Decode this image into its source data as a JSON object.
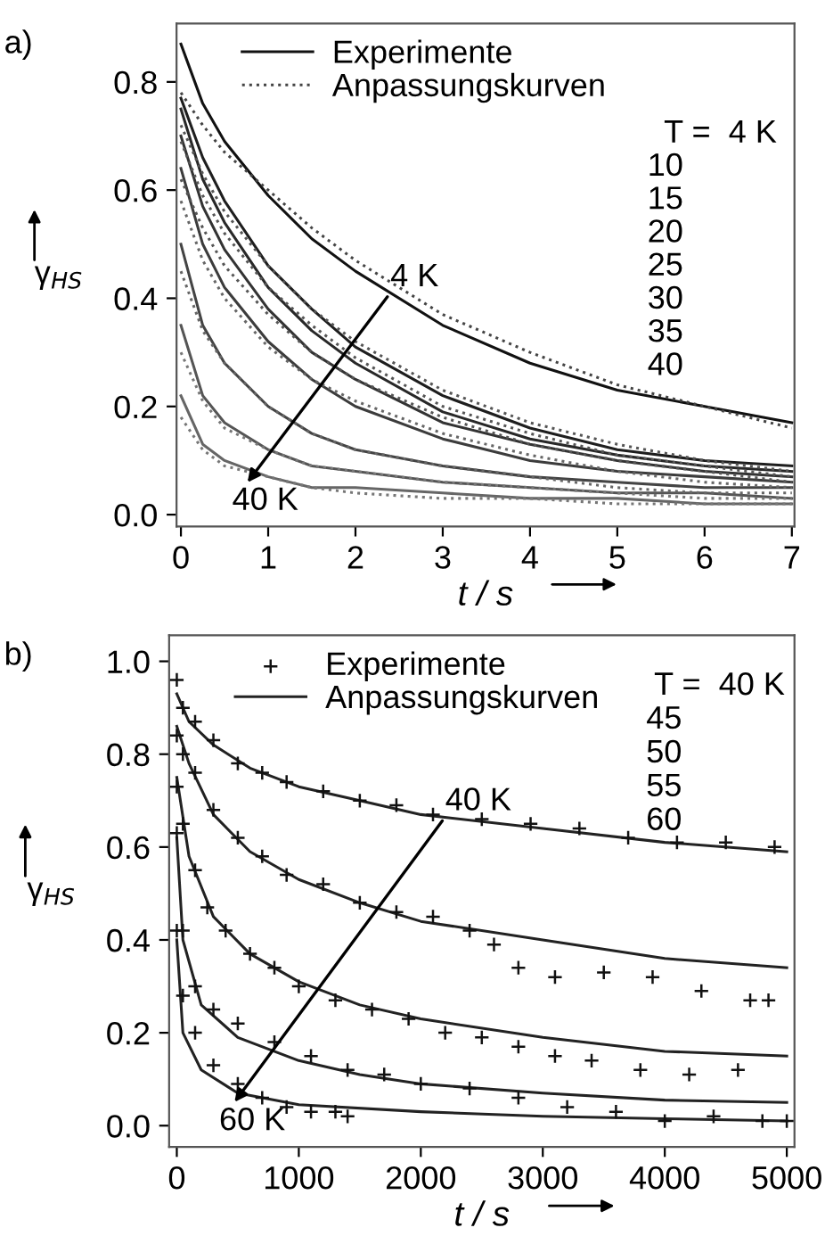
{
  "chart_data": [
    {
      "type": "line",
      "xlabel": "t / s",
      "ylabel": "γ$_{HS}$",
      "xlim": [
        -0.05,
        7.03
      ],
      "ylim": [
        -0.022,
        0.908
      ],
      "xticks": [
        0,
        1,
        2,
        3,
        4,
        5,
        6,
        7
      ],
      "yticks": [
        {
          "value": 0,
          "label": "0.0"
        },
        {
          "value": 0.2,
          "label": "0.2"
        },
        {
          "value": 0.4,
          "label": "0.4"
        },
        {
          "value": 0.6,
          "label": "0.6"
        },
        {
          "value": 0.8,
          "label": "0.8"
        }
      ],
      "grid": false,
      "legend": "top",
      "x": [
        0,
        0.25,
        0.5,
        1,
        1.5,
        2,
        3,
        4,
        5,
        6,
        7
      ],
      "annotations": [
        "a)",
        "T =  4 K",
        "10",
        "15",
        "20",
        "25",
        "30",
        "35",
        "40",
        {
          "text": "4 K",
          "x": 2.4,
          "y": 0.41
        },
        "40 K"
      ],
      "series": [
        {
          "name": "Experimente",
          "color": "#111111",
          "line_style": "solid",
          "values": [
            0.87,
            0.76,
            0.69,
            0.59,
            0.51,
            0.45,
            0.35,
            0.28,
            0.23,
            0.2,
            0.17
          ]
        },
        {
          "color": "#1e1e1e",
          "line_style": "solid",
          "values": [
            0.77,
            0.66,
            0.58,
            0.46,
            0.38,
            0.31,
            0.22,
            0.16,
            0.12,
            0.1,
            0.09
          ]
        },
        {
          "color": "#282828",
          "line_style": "solid",
          "values": [
            0.75,
            0.62,
            0.54,
            0.42,
            0.34,
            0.28,
            0.19,
            0.14,
            0.11,
            0.09,
            0.08
          ]
        },
        {
          "color": "#333333",
          "line_style": "solid",
          "values": [
            0.7,
            0.57,
            0.49,
            0.38,
            0.3,
            0.25,
            0.17,
            0.13,
            0.1,
            0.08,
            0.07
          ]
        },
        {
          "color": "#3c3c3c",
          "line_style": "solid",
          "values": [
            0.64,
            0.5,
            0.42,
            0.32,
            0.25,
            0.2,
            0.14,
            0.1,
            0.08,
            0.07,
            0.06
          ]
        },
        {
          "color": "#444444",
          "line_style": "solid",
          "values": [
            0.5,
            0.35,
            0.28,
            0.2,
            0.15,
            0.12,
            0.09,
            0.07,
            0.06,
            0.05,
            0.05
          ]
        },
        {
          "color": "#555555",
          "line_style": "solid",
          "values": [
            0.35,
            0.22,
            0.17,
            0.12,
            0.09,
            0.08,
            0.06,
            0.05,
            0.04,
            0.04,
            0.03
          ]
        },
        {
          "color": "#666666",
          "line_style": "solid",
          "values": [
            0.22,
            0.13,
            0.1,
            0.07,
            0.05,
            0.05,
            0.04,
            0.03,
            0.03,
            0.02,
            0.02
          ]
        },
        {
          "name": "Anpassungskurven",
          "color": "#444444",
          "line_style": "dotted",
          "values": [
            0.78,
            0.72,
            0.67,
            0.6,
            0.53,
            0.47,
            0.37,
            0.3,
            0.24,
            0.2,
            0.16
          ]
        },
        {
          "color": "#555555",
          "line_style": "dotted",
          "values": [
            0.72,
            0.63,
            0.56,
            0.46,
            0.38,
            0.32,
            0.23,
            0.17,
            0.13,
            0.1,
            0.08
          ]
        },
        {
          "color": "#555555",
          "line_style": "dotted",
          "values": [
            0.69,
            0.59,
            0.52,
            0.42,
            0.35,
            0.29,
            0.2,
            0.15,
            0.11,
            0.09,
            0.07
          ]
        },
        {
          "color": "#555555",
          "line_style": "dotted",
          "values": [
            0.62,
            0.53,
            0.46,
            0.37,
            0.3,
            0.25,
            0.18,
            0.13,
            0.1,
            0.08,
            0.06
          ]
        },
        {
          "color": "#666666",
          "line_style": "dotted",
          "values": [
            0.58,
            0.47,
            0.4,
            0.31,
            0.25,
            0.21,
            0.15,
            0.11,
            0.08,
            0.06,
            0.05
          ]
        },
        {
          "color": "#666666",
          "line_style": "dotted",
          "values": [
            0.45,
            0.34,
            0.28,
            0.2,
            0.15,
            0.12,
            0.09,
            0.07,
            0.05,
            0.04,
            0.04
          ]
        },
        {
          "color": "#777777",
          "line_style": "dotted",
          "values": [
            0.3,
            0.21,
            0.16,
            0.12,
            0.09,
            0.08,
            0.06,
            0.05,
            0.04,
            0.03,
            0.03
          ]
        },
        {
          "color": "#777777",
          "line_style": "dotted",
          "values": [
            0.18,
            0.12,
            0.09,
            0.07,
            0.05,
            0.04,
            0.03,
            0.03,
            0.02,
            0.02,
            0.02
          ]
        }
      ]
    },
    {
      "type": "scatter",
      "xlabel": "t / s",
      "ylabel": "γ$_{HS}$",
      "xlim": [
        -63,
        5063
      ],
      "ylim": [
        -0.046,
        1.056
      ],
      "xticks": [
        0,
        1000,
        2000,
        3000,
        4000,
        5000
      ],
      "yticks": [
        {
          "value": 0,
          "label": "0.0"
        },
        {
          "value": 0.2,
          "label": "0.2"
        },
        {
          "value": 0.4,
          "label": "0.4"
        },
        {
          "value": 0.6,
          "label": "0.6"
        },
        {
          "value": 0.8,
          "label": "0.8"
        },
        {
          "value": 1,
          "label": "1.0"
        }
      ],
      "grid": false,
      "legend": "top",
      "annotations": [
        "b)",
        "T =  40 K",
        "45",
        "50",
        "55",
        "60",
        {
          "text": "40 K",
          "x": 2200,
          "y": 0.665
        },
        "60 K"
      ],
      "series": [
        {
          "name": "Experimente",
          "type": "scatter",
          "marker": "cross",
          "color": "#111111",
          "x": [
            0,
            50,
            150,
            300,
            500,
            700,
            900,
            1200,
            1500,
            1800,
            2100,
            2500,
            2900,
            3300,
            3700,
            4100,
            4500,
            4900
          ],
          "values": [
            0.96,
            0.9,
            0.87,
            0.83,
            0.78,
            0.76,
            0.74,
            0.72,
            0.7,
            0.69,
            0.67,
            0.66,
            0.65,
            0.64,
            0.62,
            0.61,
            0.61,
            0.6
          ]
        },
        {
          "type": "scatter",
          "marker": "cross",
          "color": "#111111",
          "x": [
            0,
            50,
            150,
            300,
            500,
            700,
            900,
            1200,
            1500,
            1800,
            2100,
            2400,
            2600,
            2800,
            3100,
            3500,
            3900,
            4300,
            4700,
            4850
          ],
          "values": [
            0.84,
            0.8,
            0.76,
            0.68,
            0.62,
            0.58,
            0.54,
            0.52,
            0.48,
            0.46,
            0.45,
            0.42,
            0.39,
            0.34,
            0.32,
            0.33,
            0.32,
            0.29,
            0.27,
            0.27
          ]
        },
        {
          "type": "scatter",
          "marker": "cross",
          "color": "#111111",
          "x": [
            0,
            50,
            150,
            250,
            400,
            600,
            800,
            1000,
            1300,
            1600,
            1900,
            2200,
            2500,
            2800,
            3100,
            3400,
            3800,
            4200,
            4600
          ],
          "values": [
            0.73,
            0.65,
            0.55,
            0.47,
            0.42,
            0.37,
            0.34,
            0.3,
            0.27,
            0.25,
            0.23,
            0.2,
            0.19,
            0.17,
            0.15,
            0.14,
            0.12,
            0.11,
            0.12
          ]
        },
        {
          "type": "scatter",
          "marker": "cross",
          "color": "#111111",
          "x": [
            0,
            50,
            150,
            300,
            500,
            800,
            1100,
            1400,
            1700,
            2000,
            2400,
            2800,
            3200,
            3600,
            4000,
            4400,
            4800,
            5000
          ],
          "values": [
            0.63,
            0.42,
            0.3,
            0.25,
            0.22,
            0.18,
            0.15,
            0.12,
            0.11,
            0.09,
            0.08,
            0.06,
            0.04,
            0.03,
            0.01,
            0.02,
            0.01,
            0.01
          ]
        },
        {
          "type": "scatter",
          "marker": "cross",
          "color": "#111111",
          "x": [
            0,
            50,
            150,
            300,
            500,
            700,
            900,
            1100,
            1300,
            1400
          ],
          "values": [
            0.42,
            0.28,
            0.2,
            0.13,
            0.09,
            0.06,
            0.04,
            0.03,
            0.03,
            0.02
          ]
        },
        {
          "name": "Anpassungskurven",
          "type": "line",
          "marker": "none",
          "line_style": "solid",
          "color": "#222222",
          "x": [
            0,
            100,
            300,
            600,
            1000,
            1500,
            2000,
            3000,
            4000,
            5000
          ],
          "values": [
            0.93,
            0.87,
            0.82,
            0.77,
            0.73,
            0.7,
            0.67,
            0.64,
            0.61,
            0.59
          ]
        },
        {
          "type": "line",
          "marker": "none",
          "line_style": "solid",
          "color": "#222222",
          "x": [
            0,
            100,
            300,
            600,
            1000,
            1500,
            2000,
            3000,
            4000,
            5000
          ],
          "values": [
            0.86,
            0.78,
            0.67,
            0.59,
            0.53,
            0.48,
            0.44,
            0.4,
            0.36,
            0.34
          ]
        },
        {
          "type": "line",
          "marker": "none",
          "line_style": "solid",
          "color": "#222222",
          "x": [
            0,
            100,
            300,
            600,
            1000,
            1500,
            2000,
            3000,
            4000,
            5000
          ],
          "values": [
            0.75,
            0.58,
            0.45,
            0.37,
            0.31,
            0.26,
            0.23,
            0.19,
            0.16,
            0.15
          ]
        },
        {
          "type": "line",
          "marker": "none",
          "line_style": "solid",
          "color": "#222222",
          "x": [
            0,
            50,
            200,
            500,
            1000,
            1500,
            2000,
            3000,
            4000,
            5000
          ],
          "values": [
            0.62,
            0.4,
            0.26,
            0.19,
            0.14,
            0.11,
            0.09,
            0.07,
            0.055,
            0.05
          ]
        },
        {
          "type": "line",
          "marker": "none",
          "line_style": "solid",
          "color": "#222222",
          "x": [
            0,
            50,
            200,
            500,
            1000,
            2000,
            3000,
            4000,
            5000
          ],
          "values": [
            0.4,
            0.2,
            0.12,
            0.07,
            0.045,
            0.03,
            0.02,
            0.015,
            0.01
          ]
        }
      ]
    }
  ]
}
